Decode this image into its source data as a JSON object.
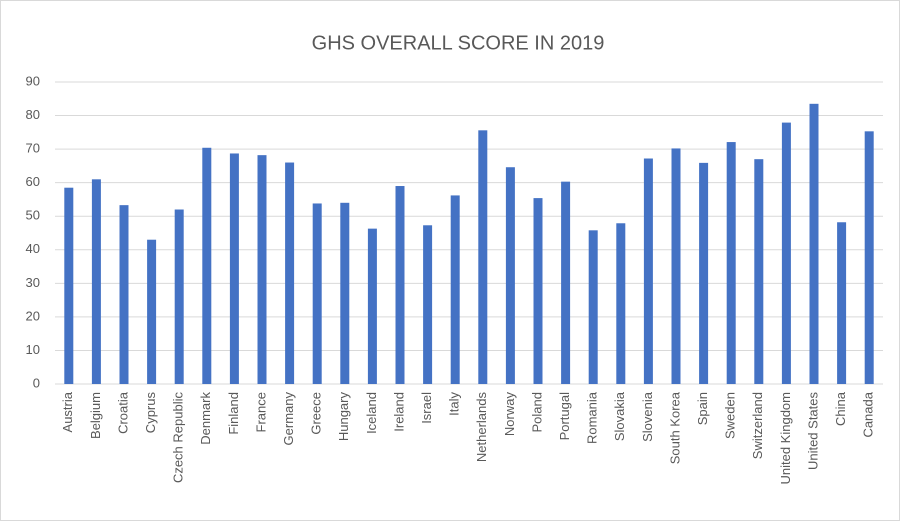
{
  "chart_data": {
    "type": "bar",
    "title": "GHS OVERALL SCORE IN 2019",
    "categories": [
      "Austria",
      "Belgium",
      "Croatia",
      "Cyprus",
      "Czech Republic",
      "Denmark",
      "Finland",
      "France",
      "Germany",
      "Greece",
      "Hungary",
      "Iceland",
      "Ireland",
      "Israel",
      "Italy",
      "Netherlands",
      "Norway",
      "Poland",
      "Portugal",
      "Romania",
      "Slovakia",
      "Slovenia",
      "South Korea",
      "Spain",
      "Sweden",
      "Switzerland",
      "United Kingdom",
      "United States",
      "China",
      "Canada"
    ],
    "values": [
      58.5,
      61,
      53.3,
      43,
      52,
      70.4,
      68.7,
      68.2,
      66,
      53.8,
      54,
      46.3,
      59,
      47.3,
      56.2,
      75.6,
      64.6,
      55.4,
      60.3,
      45.8,
      47.9,
      67.2,
      70.2,
      65.9,
      72.1,
      67,
      77.9,
      83.5,
      48.2,
      75.3
    ],
    "color": "#4472c4",
    "ylim": [
      0,
      90
    ],
    "yticks": [
      0,
      10,
      20,
      30,
      40,
      50,
      60,
      70,
      80,
      90
    ],
    "grid": true
  }
}
